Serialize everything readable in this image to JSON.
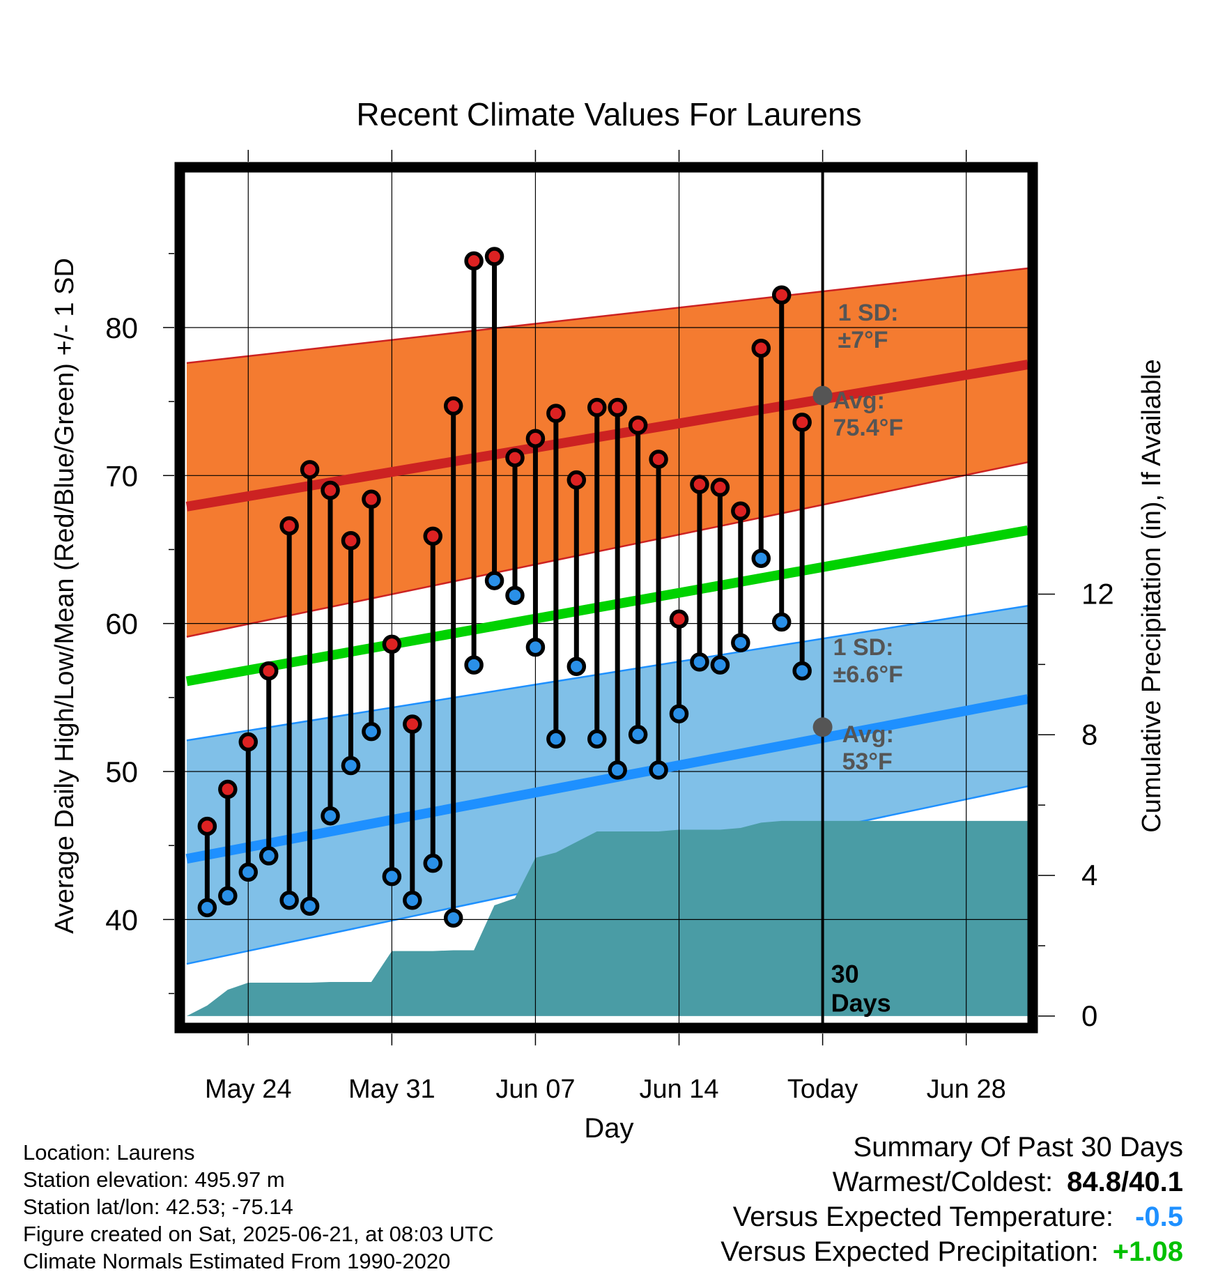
{
  "chart_data": {
    "type": "line",
    "title": "Recent Climate Values For Laurens",
    "xlabel": "Day",
    "ylabel_left": "Average Daily High/Low/Mean (Red/Blue/Green) +/- 1 SD",
    "ylabel_right": "Cumulative Precipitation (in), If Available",
    "x_ticks": [
      {
        "day": 3,
        "label": "May 24"
      },
      {
        "day": 10,
        "label": "May 31"
      },
      {
        "day": 17,
        "label": "Jun 07"
      },
      {
        "day": 24,
        "label": "Jun 14"
      },
      {
        "day": 31,
        "label": "Today"
      },
      {
        "day": 38,
        "label": "Jun 28"
      }
    ],
    "xlim": [
      -0.1,
      41.0
    ],
    "ylim_left": [
      33.0,
      90.5
    ],
    "yticks_left": [
      40,
      50,
      60,
      70,
      80
    ],
    "ylim_right": [
      -0.2,
      24.0
    ],
    "yticks_right": [
      0,
      4,
      8,
      12
    ],
    "today_day": 31,
    "today_label": "30\nDays",
    "grid": true,
    "daily": {
      "days": [
        1,
        2,
        3,
        4,
        5,
        6,
        7,
        8,
        9,
        10,
        11,
        12,
        13,
        14,
        15,
        16,
        17,
        18,
        19,
        20,
        21,
        22,
        23,
        24,
        25,
        26,
        27,
        28,
        29,
        30
      ],
      "highs": [
        46.3,
        48.8,
        52.0,
        56.8,
        66.6,
        70.4,
        69.0,
        65.6,
        68.4,
        58.6,
        53.2,
        65.9,
        74.7,
        84.5,
        84.8,
        71.2,
        72.5,
        74.2,
        69.7,
        74.6,
        74.6,
        73.4,
        71.1,
        60.3,
        69.4,
        69.2,
        67.6,
        78.6,
        82.2,
        73.6
      ],
      "lows": [
        40.8,
        41.6,
        43.2,
        44.3,
        41.3,
        40.9,
        47.0,
        50.4,
        52.7,
        42.9,
        41.3,
        43.8,
        40.1,
        57.2,
        62.9,
        61.9,
        58.4,
        52.2,
        57.1,
        52.2,
        50.1,
        52.5,
        50.1,
        53.9,
        57.4,
        57.2,
        58.7,
        64.4,
        60.1,
        56.8
      ]
    },
    "normals": {
      "days": [
        0,
        41
      ],
      "high_avg": [
        67.9,
        77.5
      ],
      "high_sd_upper": [
        77.6,
        84.0
      ],
      "high_sd_lower": [
        59.1,
        70.9
      ],
      "mean_avg": [
        56.1,
        66.3
      ],
      "low_avg": [
        44.1,
        54.9
      ],
      "low_sd_upper": [
        52.1,
        61.2
      ],
      "low_sd_lower": [
        37.0,
        49.0
      ]
    },
    "precip": {
      "days": [
        0,
        1.0,
        2.0,
        3.0,
        4.0,
        5.0,
        6.0,
        7.0,
        8.0,
        9.0,
        10.0,
        11.0,
        12.0,
        13.0,
        14.0,
        15.0,
        16.0,
        17.0,
        18.0,
        19.0,
        20.0,
        21.0,
        22.0,
        23.0,
        24.0,
        25.0,
        26.0,
        27.0,
        28.0,
        29.0,
        30.0,
        31.0,
        41.0
      ],
      "cum_in": [
        0,
        0.3,
        0.75,
        0.95,
        0.95,
        0.95,
        0.95,
        0.97,
        0.97,
        0.97,
        1.85,
        1.85,
        1.85,
        1.87,
        1.87,
        3.15,
        3.35,
        4.5,
        4.65,
        4.95,
        5.25,
        5.25,
        5.25,
        5.25,
        5.3,
        5.3,
        5.3,
        5.35,
        5.5,
        5.55,
        5.55,
        5.55,
        5.55
      ]
    },
    "annotations": {
      "high_sd": "1 SD:\n±7°F",
      "high_avg": "Avg:\n75.4°F",
      "low_sd": "1 SD:\n±6.6°F",
      "low_avg": "Avg:\n53°F",
      "today_high_avg": 75.4,
      "today_low_avg": 53.0
    },
    "colors": {
      "high_band": "#f47b30",
      "high_line": "#cc2222",
      "mean_line": "#00d200",
      "low_band": "#80c0e8",
      "low_line": "#1e90ff",
      "precip": "#4a9ca5",
      "high_dot": "#dd2222",
      "low_dot": "#2a90e8",
      "annot": "#555555",
      "summary_temp": "#1e90ff",
      "summary_precip": "#00c000"
    }
  },
  "meta": {
    "location": "Location: Laurens",
    "elevation": "Station elevation: 495.97 m",
    "latlon": "Station lat/lon: 42.53; -75.14",
    "created": "Figure created on Sat, 2025-06-21, at 08:03 UTC",
    "normals_period": "Climate Normals Estimated From 1990-2020"
  },
  "summary": {
    "title": "Summary Of Past 30 Days",
    "warm_cold_label": "Warmest/Coldest:",
    "warm_cold_value": "84.8/40.1",
    "temp_label": "Versus Expected Temperature:",
    "temp_value": "-0.5",
    "precip_label": "Versus Expected Precipitation:",
    "precip_value": "+1.08"
  }
}
